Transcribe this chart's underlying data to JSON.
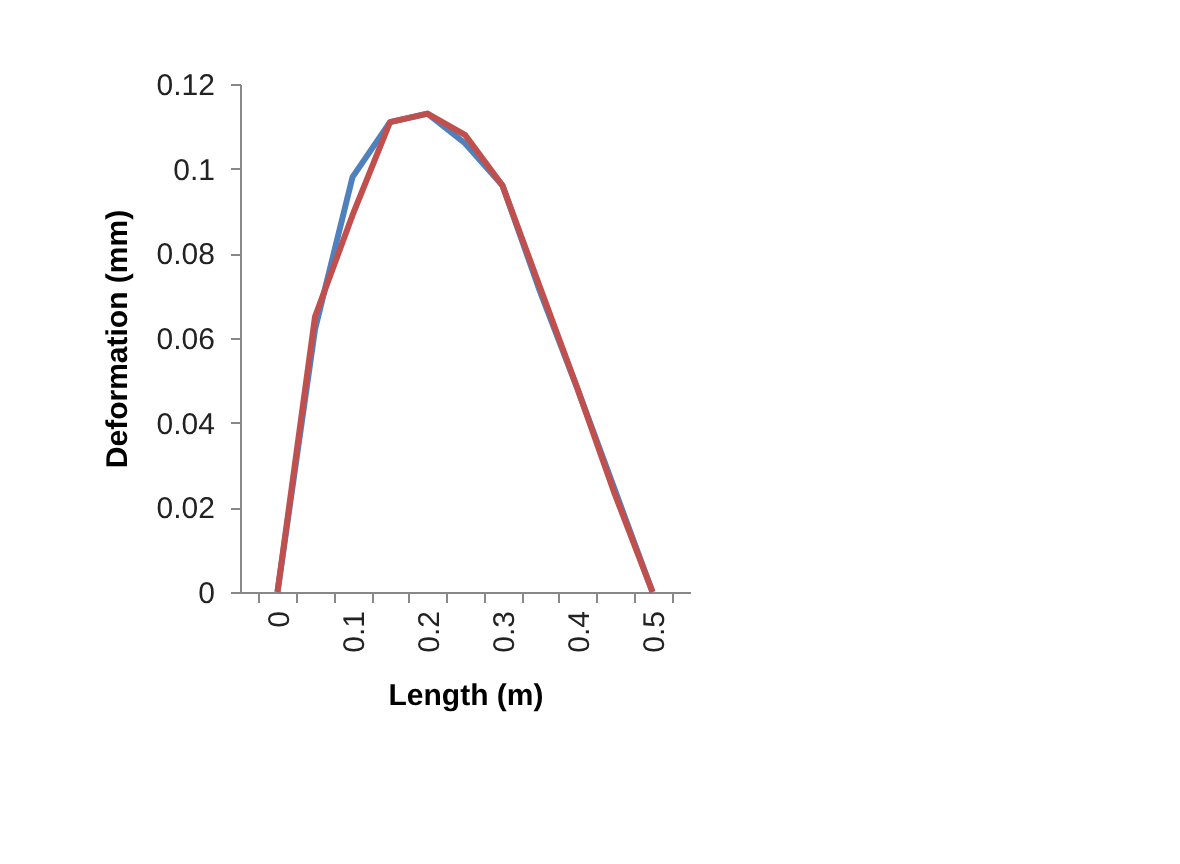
{
  "chart_data": {
    "type": "line",
    "xlabel": "Length (m)",
    "ylabel": "Deformation (mm)",
    "categories": [
      "0",
      null,
      "0.1",
      null,
      "0.2",
      null,
      "0.3",
      null,
      "0.4",
      null,
      "0.5"
    ],
    "series": [
      {
        "color": "#4f81bd",
        "values": [
          0,
          0.062,
          0.098,
          0.111,
          0.113,
          0.106,
          0.096,
          0.071,
          0.048,
          0.024,
          0
        ]
      },
      {
        "color": "#c0504d",
        "values": [
          0,
          0.065,
          0.089,
          0.111,
          0.113,
          0.108,
          0.096,
          0.072,
          0.048,
          0.023,
          0
        ]
      }
    ],
    "ylim": [
      0,
      0.12
    ],
    "yticks": [
      0,
      0.02,
      0.04,
      0.06,
      0.08,
      0.1,
      0.12
    ],
    "grid": false,
    "legend": false,
    "marker": "none",
    "line_style": "solid"
  }
}
